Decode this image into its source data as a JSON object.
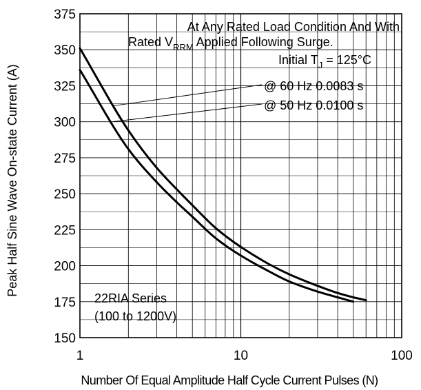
{
  "chart_data": {
    "type": "line",
    "title": "",
    "xlabel": "Number Of Equal Amplitude Half Cycle Current Pulses (N)",
    "ylabel": "Peak Half Sine Wave On-state Current (A)",
    "x_scale": "log",
    "xlim": [
      1,
      100
    ],
    "ylim": [
      150,
      375
    ],
    "grid": true,
    "x_tick_labels": [
      "1",
      "10",
      "100"
    ],
    "y_ticks": [
      150,
      175,
      200,
      225,
      250,
      275,
      300,
      325,
      350,
      375
    ],
    "series": [
      {
        "name": "@ 60 Hz 0.0083 s",
        "x": [
          1,
          2,
          3,
          4,
          5,
          7,
          10,
          15,
          20,
          30,
          40,
          50,
          60
        ],
        "y": [
          351,
          294,
          268,
          253,
          242,
          226,
          213,
          201,
          194,
          186,
          181,
          178,
          176
        ]
      },
      {
        "name": "@ 50 Hz 0.0100 s",
        "x": [
          1,
          2,
          3,
          4,
          5,
          7,
          10,
          15,
          20,
          30,
          40,
          50
        ],
        "y": [
          336,
          281,
          258,
          244,
          234,
          219,
          207,
          196,
          189,
          182,
          178,
          175
        ]
      }
    ],
    "annotations": {
      "condition_line1": "At Any Rated Load Condition And With",
      "condition_line2_pre": "Rated V",
      "condition_line2_sub": "RRM",
      "condition_line2_post": " Applied Following Surge.",
      "initial_pre": "Initial T",
      "initial_sub": "J",
      "initial_post": " = 125°C",
      "series_label": "22RIA Series",
      "voltage_range": "(100 to 1200V)"
    }
  }
}
